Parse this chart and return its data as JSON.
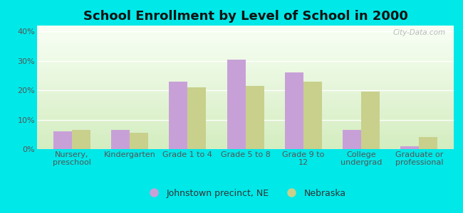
{
  "title": "School Enrollment by Level of School in 2000",
  "categories": [
    "Nursery,\npreschool",
    "Kindergarten",
    "Grade 1 to 4",
    "Grade 5 to 8",
    "Grade 9 to\n12",
    "College\nundergrad",
    "Graduate or\nprofessional"
  ],
  "johnstown_values": [
    6.0,
    6.5,
    23.0,
    30.5,
    26.0,
    6.5,
    1.0
  ],
  "nebraska_values": [
    6.5,
    5.5,
    21.0,
    21.5,
    23.0,
    19.5,
    4.0
  ],
  "johnstown_color": "#c8a0d8",
  "nebraska_color": "#c8d08c",
  "background_color": "#00e8e8",
  "bar_width": 0.32,
  "ylim": [
    0,
    42
  ],
  "yticks": [
    0,
    10,
    20,
    30,
    40
  ],
  "ytick_labels": [
    "0%",
    "10%",
    "20%",
    "30%",
    "40%"
  ],
  "legend_label_johnstown": "Johnstown precinct, NE",
  "legend_label_nebraska": "Nebraska",
  "watermark": "City-Data.com",
  "title_fontsize": 13,
  "tick_fontsize": 8,
  "legend_fontsize": 9
}
